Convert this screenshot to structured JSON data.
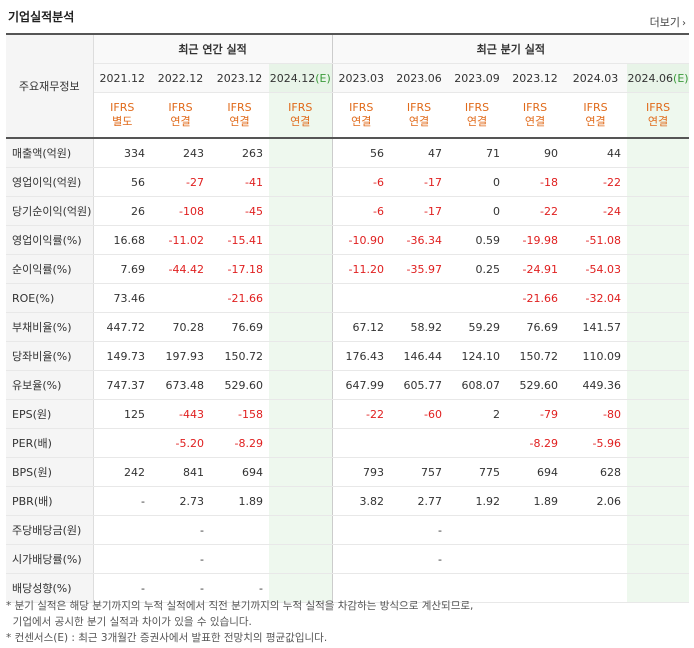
{
  "title": "기업실적분석",
  "more": "더보기",
  "header": {
    "label": "주요재무정보",
    "annual_group": "최근 연간 실적",
    "quarter_group": "최근 분기 실적",
    "periods": [
      "2021.12",
      "2022.12",
      "2023.12",
      "2024.12",
      "2023.03",
      "2023.06",
      "2023.09",
      "2023.12",
      "2024.03",
      "2024.06"
    ],
    "est_mark": "(E)",
    "ifrs": [
      "IFRS",
      "IFRS",
      "IFRS",
      "IFRS",
      "IFRS",
      "IFRS",
      "IFRS",
      "IFRS",
      "IFRS",
      "IFRS"
    ],
    "basis": [
      "별도",
      "연결",
      "연결",
      "연결",
      "연결",
      "연결",
      "연결",
      "연결",
      "연결",
      "연결"
    ]
  },
  "rows": [
    {
      "label": "매출액(억원)",
      "values": [
        "334",
        "243",
        "263",
        "",
        "56",
        "47",
        "71",
        "90",
        "44",
        ""
      ]
    },
    {
      "label": "영업이익(억원)",
      "values": [
        "56",
        "-27",
        "-41",
        "",
        "-6",
        "-17",
        "0",
        "-18",
        "-22",
        ""
      ]
    },
    {
      "label": "당기순이익(억원)",
      "values": [
        "26",
        "-108",
        "-45",
        "",
        "-6",
        "-17",
        "0",
        "-22",
        "-24",
        ""
      ]
    },
    {
      "label": "영업이익률(%)",
      "values": [
        "16.68",
        "-11.02",
        "-15.41",
        "",
        "-10.90",
        "-36.34",
        "0.59",
        "-19.98",
        "-51.08",
        ""
      ]
    },
    {
      "label": "순이익률(%)",
      "values": [
        "7.69",
        "-44.42",
        "-17.18",
        "",
        "-11.20",
        "-35.97",
        "0.25",
        "-24.91",
        "-54.03",
        ""
      ]
    },
    {
      "label": "ROE(%)",
      "values": [
        "73.46",
        "",
        "-21.66",
        "",
        "",
        "",
        "",
        "-21.66",
        "-32.04",
        ""
      ]
    },
    {
      "label": "부채비율(%)",
      "values": [
        "447.72",
        "70.28",
        "76.69",
        "",
        "67.12",
        "58.92",
        "59.29",
        "76.69",
        "141.57",
        ""
      ]
    },
    {
      "label": "당좌비율(%)",
      "values": [
        "149.73",
        "197.93",
        "150.72",
        "",
        "176.43",
        "146.44",
        "124.10",
        "150.72",
        "110.09",
        ""
      ]
    },
    {
      "label": "유보율(%)",
      "values": [
        "747.37",
        "673.48",
        "529.60",
        "",
        "647.99",
        "605.77",
        "608.07",
        "529.60",
        "449.36",
        ""
      ]
    },
    {
      "label": "EPS(원)",
      "values": [
        "125",
        "-443",
        "-158",
        "",
        "-22",
        "-60",
        "2",
        "-79",
        "-80",
        ""
      ]
    },
    {
      "label": "PER(배)",
      "values": [
        "",
        "-5.20",
        "-8.29",
        "",
        "",
        "",
        "",
        "-8.29",
        "-5.96",
        ""
      ]
    },
    {
      "label": "BPS(원)",
      "values": [
        "242",
        "841",
        "694",
        "",
        "793",
        "757",
        "775",
        "694",
        "628",
        ""
      ]
    },
    {
      "label": "PBR(배)",
      "values": [
        "-",
        "2.73",
        "1.89",
        "",
        "3.82",
        "2.77",
        "1.92",
        "1.89",
        "2.06",
        ""
      ]
    },
    {
      "label": "주당배당금(원)",
      "values": [
        "",
        "-",
        "",
        "",
        "",
        "-",
        "",
        "",
        "",
        ""
      ]
    },
    {
      "label": "시가배당률(%)",
      "values": [
        "",
        "-",
        "",
        "",
        "",
        "-",
        "",
        "",
        "",
        ""
      ]
    },
    {
      "label": "배당성향(%)",
      "values": [
        "-",
        "-",
        "-",
        "",
        "",
        "",
        "",
        "",
        "",
        ""
      ]
    }
  ],
  "notes": [
    "* 분기 실적은 해당 분기까지의 누적 실적에서 직전 분기까지의 누적 실적을 차감하는 방식으로 계산되므로,",
    "  기업에서 공시한 분기 실적과 차이가 있을 수 있습니다.",
    "* 컨센서스(E) : 최근 3개월간 증권사에서 발표한 전망치의 평균값입니다."
  ]
}
